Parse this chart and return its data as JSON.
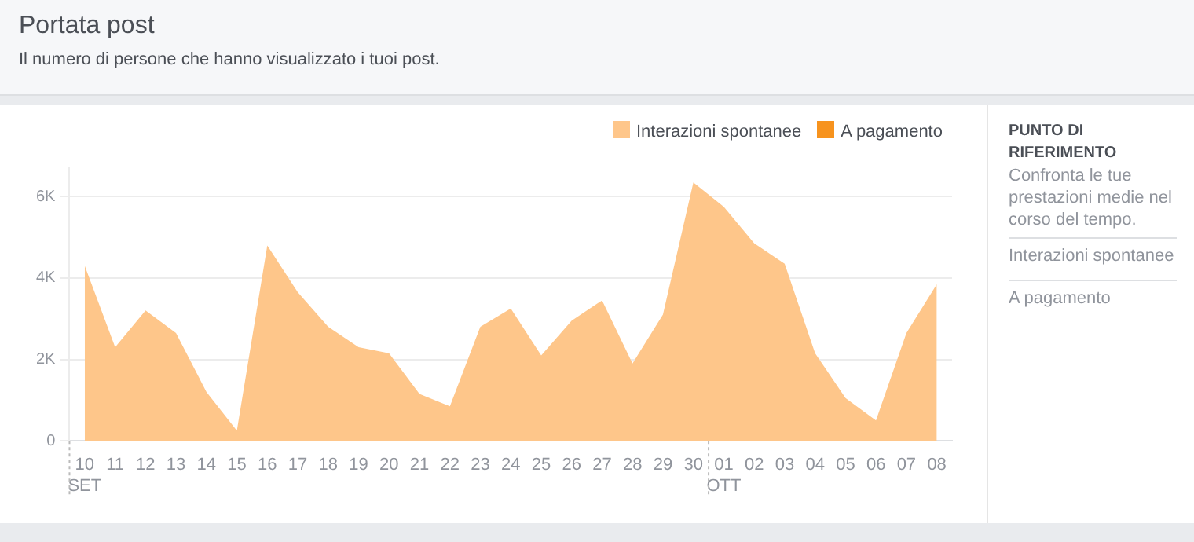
{
  "chart_data": {
    "type": "area",
    "title": "Portata post",
    "subtitle": "Il numero di persone che hanno visualizzato i tuoi post.",
    "categories": [
      "10\nSET",
      "11",
      "12",
      "13",
      "14",
      "15",
      "16",
      "17",
      "18",
      "19",
      "20",
      "21",
      "22",
      "23",
      "24",
      "25",
      "26",
      "27",
      "28",
      "29",
      "30",
      "01\nOTT",
      "02",
      "03",
      "04",
      "05",
      "06",
      "07",
      "08"
    ],
    "series": [
      {
        "name": "Interazioni spontanee",
        "color": "#fec68a",
        "values": [
          4300,
          2300,
          3200,
          2650,
          1200,
          250,
          4800,
          3650,
          2800,
          2300,
          2150,
          1150,
          850,
          2800,
          3250,
          2100,
          2950,
          3450,
          1900,
          3100,
          6350,
          5750,
          4850,
          4350,
          2150,
          1050,
          500,
          2650,
          3850
        ]
      },
      {
        "name": "A pagamento",
        "color": "#f7931e",
        "values": [
          null,
          null,
          null,
          null,
          null,
          null,
          null,
          null,
          null,
          null,
          null,
          null,
          null,
          null,
          null,
          null,
          null,
          null,
          null,
          null,
          null,
          null,
          null,
          null,
          null,
          null,
          null,
          null,
          null
        ]
      }
    ],
    "ylim": [
      0,
      6700
    ],
    "yticks": [
      0,
      {
        "value": 2000,
        "label": "2K"
      },
      {
        "value": 4000,
        "label": "4K"
      },
      {
        "value": 6000,
        "label": "6K"
      }
    ],
    "grid": "y",
    "legend": "top right",
    "annotations": [
      "PUNTO DI RIFERIMENTO",
      "Confronta le tue prestazioni medie nel corso del tempo.",
      "Interazioni spontanee",
      "A pagamento"
    ]
  }
}
